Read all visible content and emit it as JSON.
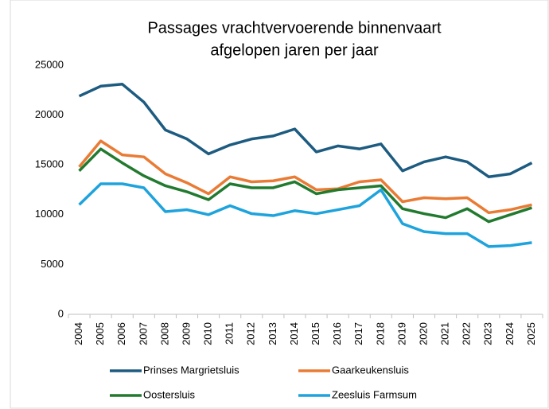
{
  "chart_data": {
    "type": "line",
    "title": [
      "Passages vrachtvervoerende binnenvaart",
      "afgelopen jaren per jaar"
    ],
    "categories": [
      "2004",
      "2005",
      "2006",
      "2007",
      "2008",
      "2009",
      "2010",
      "2011",
      "2012",
      "2013",
      "2014",
      "2015",
      "2016",
      "2017",
      "2018",
      "2019",
      "2020",
      "2021",
      "2022",
      "2023",
      "2024",
      "2025"
    ],
    "series": [
      {
        "name": "Prinses Margrietsluis",
        "color": "#1d5b80",
        "values": [
          21900,
          22900,
          23100,
          21300,
          18500,
          17600,
          16100,
          17000,
          17600,
          17900,
          18600,
          16300,
          16900,
          16600,
          17100,
          14400,
          15300,
          15800,
          15300,
          13800,
          14100,
          15200
        ]
      },
      {
        "name": "Gaarkeukensluis",
        "color": "#e97b35",
        "values": [
          14800,
          17400,
          16000,
          15800,
          14100,
          13200,
          12100,
          13800,
          13300,
          13400,
          13800,
          12500,
          12600,
          13300,
          13500,
          11300,
          11700,
          11600,
          11700,
          10200,
          10500,
          11000
        ]
      },
      {
        "name": "Oostersluis",
        "color": "#227a2f",
        "values": [
          14400,
          16600,
          15200,
          13900,
          12900,
          12300,
          11500,
          13100,
          12700,
          12700,
          13300,
          12100,
          12500,
          12700,
          12900,
          10600,
          10100,
          9700,
          10600,
          9300,
          10000,
          10700
        ]
      },
      {
        "name": "Zeesluis Farmsum",
        "color": "#1ea3dc",
        "values": [
          11000,
          13100,
          13100,
          12700,
          10300,
          10500,
          10000,
          10900,
          10100,
          9900,
          10400,
          10100,
          10500,
          10900,
          12500,
          9100,
          8300,
          8100,
          8100,
          6800,
          6900,
          7200
        ]
      }
    ],
    "ylim": [
      0,
      25000
    ],
    "yticks": [
      0,
      5000,
      10000,
      15000,
      20000,
      25000
    ],
    "grid": false
  }
}
